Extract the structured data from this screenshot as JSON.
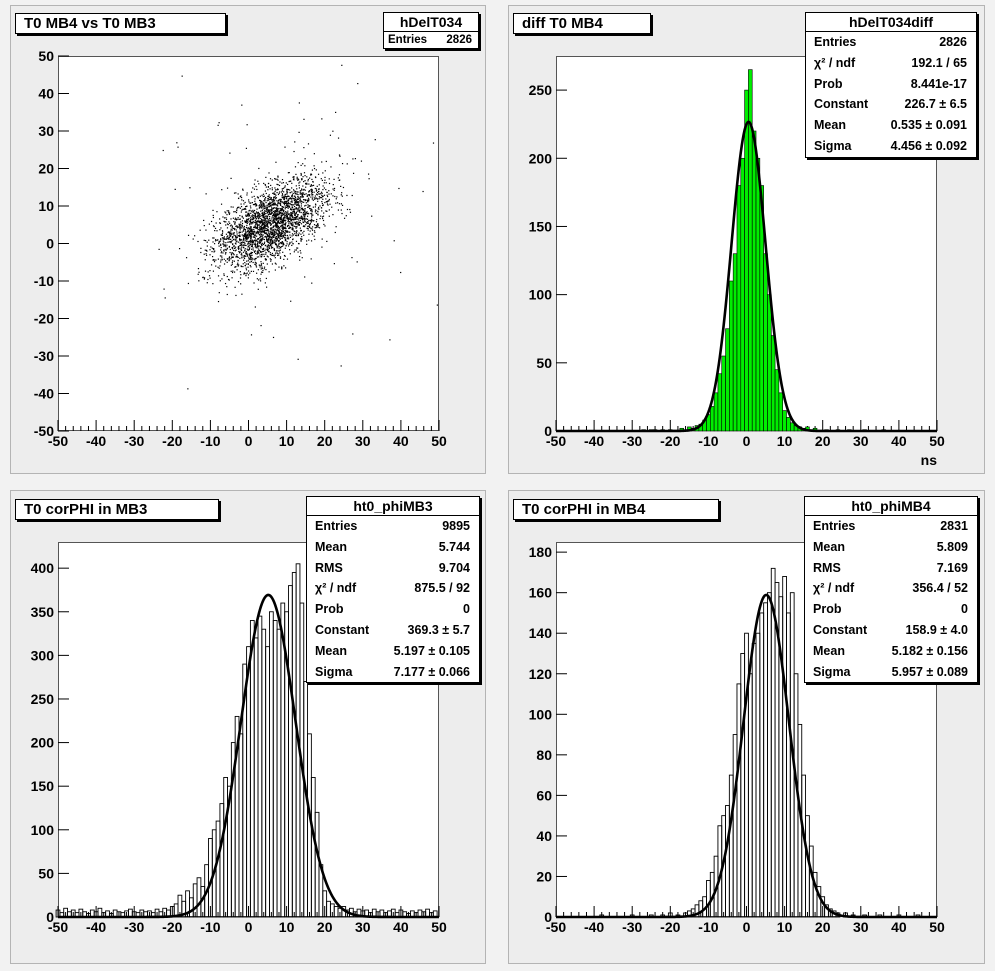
{
  "chart_data": [
    {
      "id": "p1",
      "type": "scatter",
      "title": "T0 MB4 vs T0 MB3",
      "stats": {
        "name": "hDelT034",
        "rows": [
          {
            "label": "Entries",
            "value": "2826"
          }
        ]
      },
      "xlim": [
        -50,
        50
      ],
      "ylim": [
        -50,
        50
      ],
      "xticks": [
        -50,
        -40,
        -30,
        -20,
        -10,
        0,
        10,
        20,
        30,
        40,
        50
      ],
      "yticks": [
        -50,
        -40,
        -30,
        -20,
        -10,
        0,
        10,
        20,
        30,
        40,
        50
      ],
      "xlabel": "",
      "ylabel": "",
      "grid": false,
      "correlation": 0.55,
      "x_mean": 5.7,
      "x_sigma": 7.2,
      "y_mean": 5.2,
      "y_sigma": 6.0,
      "entries": 2826
    },
    {
      "id": "p2",
      "type": "bar",
      "title": "diff T0 MB4",
      "stats": {
        "name": "hDelT034diff",
        "rows": [
          {
            "label": "Entries",
            "value": "2826"
          },
          {
            "label": "χ² / ndf",
            "value": "192.1 / 65"
          },
          {
            "label": "Prob",
            "value": "8.441e-17"
          },
          {
            "label": "Constant",
            "value": "226.7 ± 6.5"
          },
          {
            "label": "Mean",
            "value": "0.535 ± 0.091"
          },
          {
            "label": "Sigma",
            "value": "4.456 ± 0.092"
          }
        ]
      },
      "xlim": [
        -50,
        50
      ],
      "ylim": [
        0,
        275
      ],
      "xticks": [
        -50,
        -40,
        -30,
        -20,
        -10,
        0,
        10,
        20,
        30,
        40,
        50
      ],
      "yticks": [
        0,
        50,
        100,
        150,
        200,
        250
      ],
      "xlabel": "ns",
      "ylabel": "",
      "fill_color": "#00ee00",
      "fit": {
        "constant": 226.7,
        "mean": 0.535,
        "sigma": 4.456
      },
      "bin_width": 1,
      "bins": [
        {
          "x": -27,
          "y": 1
        },
        {
          "x": -25,
          "y": 1
        },
        {
          "x": -24,
          "y": 1
        },
        {
          "x": -22,
          "y": 1
        },
        {
          "x": -20,
          "y": 1
        },
        {
          "x": -17,
          "y": 2
        },
        {
          "x": -16,
          "y": 1
        },
        {
          "x": -15,
          "y": 3
        },
        {
          "x": -14,
          "y": 2
        },
        {
          "x": -13,
          "y": 4
        },
        {
          "x": -12,
          "y": 5
        },
        {
          "x": -11,
          "y": 8
        },
        {
          "x": -10,
          "y": 12
        },
        {
          "x": -9,
          "y": 18
        },
        {
          "x": -8,
          "y": 28
        },
        {
          "x": -7,
          "y": 42
        },
        {
          "x": -6,
          "y": 55
        },
        {
          "x": -5,
          "y": 75
        },
        {
          "x": -4,
          "y": 110
        },
        {
          "x": -3,
          "y": 130
        },
        {
          "x": -2,
          "y": 180
        },
        {
          "x": -1,
          "y": 200
        },
        {
          "x": 0,
          "y": 250
        },
        {
          "x": 1,
          "y": 265
        },
        {
          "x": 2,
          "y": 220
        },
        {
          "x": 3,
          "y": 200
        },
        {
          "x": 4,
          "y": 180
        },
        {
          "x": 5,
          "y": 130
        },
        {
          "x": 6,
          "y": 100
        },
        {
          "x": 7,
          "y": 70
        },
        {
          "x": 8,
          "y": 45
        },
        {
          "x": 9,
          "y": 28
        },
        {
          "x": 10,
          "y": 15
        },
        {
          "x": 11,
          "y": 10
        },
        {
          "x": 12,
          "y": 6
        },
        {
          "x": 13,
          "y": 4
        },
        {
          "x": 14,
          "y": 3
        },
        {
          "x": 15,
          "y": 2
        },
        {
          "x": 16,
          "y": 3
        },
        {
          "x": 17,
          "y": 1
        },
        {
          "x": 18,
          "y": 2
        },
        {
          "x": 21,
          "y": 1
        },
        {
          "x": 24,
          "y": 1
        },
        {
          "x": 27,
          "y": 1
        },
        {
          "x": 31,
          "y": 1
        },
        {
          "x": 36,
          "y": 1
        }
      ]
    },
    {
      "id": "p3",
      "type": "bar",
      "title": "T0 corPHI in MB3",
      "stats": {
        "name": "ht0_phiMB3",
        "rows": [
          {
            "label": "Entries",
            "value": "9895"
          },
          {
            "label": "Mean",
            "value": "5.744"
          },
          {
            "label": "RMS",
            "value": "9.704"
          },
          {
            "label": "χ² / ndf",
            "value": "875.5 / 92"
          },
          {
            "label": "Prob",
            "value": "0"
          },
          {
            "label": "Constant",
            "value": "369.3 ± 5.7"
          },
          {
            "label": "Mean",
            "value": "5.197 ± 0.105"
          },
          {
            "label": "Sigma",
            "value": "7.177 ± 0.066"
          }
        ]
      },
      "xlim": [
        -50,
        50
      ],
      "ylim": [
        0,
        430
      ],
      "xticks": [
        -50,
        -40,
        -30,
        -20,
        -10,
        0,
        10,
        20,
        30,
        40,
        50
      ],
      "yticks": [
        0,
        50,
        100,
        150,
        200,
        250,
        300,
        350,
        400
      ],
      "xlabel": "",
      "ylabel": "",
      "fill_color": "none",
      "fit": {
        "constant": 369.3,
        "mean": 5.197,
        "sigma": 7.177
      },
      "bin_width": 1,
      "bins": [
        {
          "x": -50,
          "y": 8
        },
        {
          "x": -49,
          "y": 5
        },
        {
          "x": -48,
          "y": 10
        },
        {
          "x": -47,
          "y": 6
        },
        {
          "x": -46,
          "y": 8
        },
        {
          "x": -45,
          "y": 5
        },
        {
          "x": -44,
          "y": 9
        },
        {
          "x": -43,
          "y": 6
        },
        {
          "x": -42,
          "y": 4
        },
        {
          "x": -41,
          "y": 8
        },
        {
          "x": -40,
          "y": 6
        },
        {
          "x": -39,
          "y": 10
        },
        {
          "x": -38,
          "y": 5
        },
        {
          "x": -37,
          "y": 7
        },
        {
          "x": -36,
          "y": 4
        },
        {
          "x": -35,
          "y": 8
        },
        {
          "x": -34,
          "y": 6
        },
        {
          "x": -33,
          "y": 5
        },
        {
          "x": -32,
          "y": 7
        },
        {
          "x": -31,
          "y": 9
        },
        {
          "x": -30,
          "y": 6
        },
        {
          "x": -29,
          "y": 5
        },
        {
          "x": -28,
          "y": 8
        },
        {
          "x": -27,
          "y": 6
        },
        {
          "x": -26,
          "y": 7
        },
        {
          "x": -25,
          "y": 5
        },
        {
          "x": -24,
          "y": 9
        },
        {
          "x": -23,
          "y": 6
        },
        {
          "x": -22,
          "y": 10
        },
        {
          "x": -21,
          "y": 8
        },
        {
          "x": -20,
          "y": 12
        },
        {
          "x": -19,
          "y": 15
        },
        {
          "x": -18,
          "y": 25
        },
        {
          "x": -17,
          "y": 18
        },
        {
          "x": -16,
          "y": 30
        },
        {
          "x": -15,
          "y": 22
        },
        {
          "x": -14,
          "y": 38
        },
        {
          "x": -13,
          "y": 45
        },
        {
          "x": -12,
          "y": 35
        },
        {
          "x": -11,
          "y": 60
        },
        {
          "x": -10,
          "y": 90
        },
        {
          "x": -9,
          "y": 100
        },
        {
          "x": -8,
          "y": 110
        },
        {
          "x": -7,
          "y": 130
        },
        {
          "x": -6,
          "y": 160
        },
        {
          "x": -5,
          "y": 150
        },
        {
          "x": -4,
          "y": 200
        },
        {
          "x": -3,
          "y": 230
        },
        {
          "x": -2,
          "y": 210
        },
        {
          "x": -1,
          "y": 290
        },
        {
          "x": 0,
          "y": 310
        },
        {
          "x": 1,
          "y": 340
        },
        {
          "x": 2,
          "y": 320
        },
        {
          "x": 3,
          "y": 345
        },
        {
          "x": 4,
          "y": 330
        },
        {
          "x": 5,
          "y": 310
        },
        {
          "x": 6,
          "y": 350
        },
        {
          "x": 7,
          "y": 340
        },
        {
          "x": 8,
          "y": 330
        },
        {
          "x": 9,
          "y": 360
        },
        {
          "x": 10,
          "y": 350
        },
        {
          "x": 11,
          "y": 380
        },
        {
          "x": 12,
          "y": 395
        },
        {
          "x": 13,
          "y": 405
        },
        {
          "x": 14,
          "y": 360
        },
        {
          "x": 15,
          "y": 270
        },
        {
          "x": 16,
          "y": 210
        },
        {
          "x": 17,
          "y": 160
        },
        {
          "x": 18,
          "y": 120
        },
        {
          "x": 19,
          "y": 60
        },
        {
          "x": 20,
          "y": 30
        },
        {
          "x": 21,
          "y": 18
        },
        {
          "x": 22,
          "y": 15
        },
        {
          "x": 23,
          "y": 12
        },
        {
          "x": 24,
          "y": 10
        },
        {
          "x": 25,
          "y": 12
        },
        {
          "x": 26,
          "y": 8
        },
        {
          "x": 27,
          "y": 10
        },
        {
          "x": 28,
          "y": 6
        },
        {
          "x": 29,
          "y": 9
        },
        {
          "x": 30,
          "y": 7
        },
        {
          "x": 31,
          "y": 8
        },
        {
          "x": 32,
          "y": 5
        },
        {
          "x": 33,
          "y": 9
        },
        {
          "x": 34,
          "y": 6
        },
        {
          "x": 35,
          "y": 8
        },
        {
          "x": 36,
          "y": 5
        },
        {
          "x": 37,
          "y": 7
        },
        {
          "x": 38,
          "y": 9
        },
        {
          "x": 39,
          "y": 5
        },
        {
          "x": 40,
          "y": 8
        },
        {
          "x": 41,
          "y": 6
        },
        {
          "x": 42,
          "y": 4
        },
        {
          "x": 43,
          "y": 7
        },
        {
          "x": 44,
          "y": 5
        },
        {
          "x": 45,
          "y": 8
        },
        {
          "x": 46,
          "y": 6
        },
        {
          "x": 47,
          "y": 9
        },
        {
          "x": 48,
          "y": 5
        },
        {
          "x": 49,
          "y": 7
        }
      ]
    },
    {
      "id": "p4",
      "type": "bar",
      "title": "T0 corPHI in MB4",
      "stats": {
        "name": "ht0_phiMB4",
        "rows": [
          {
            "label": "Entries",
            "value": "2831"
          },
          {
            "label": "Mean",
            "value": "5.809"
          },
          {
            "label": "RMS",
            "value": "7.169"
          },
          {
            "label": "χ² / ndf",
            "value": "356.4 / 52"
          },
          {
            "label": "Prob",
            "value": "0"
          },
          {
            "label": "Constant",
            "value": "158.9 ± 4.0"
          },
          {
            "label": "Mean",
            "value": "5.182 ± 0.156"
          },
          {
            "label": "Sigma",
            "value": "5.957 ± 0.089"
          }
        ]
      },
      "xlim": [
        -50,
        50
      ],
      "ylim": [
        0,
        185
      ],
      "xticks": [
        -50,
        -40,
        -30,
        -20,
        -10,
        0,
        10,
        20,
        30,
        40,
        50
      ],
      "yticks": [
        0,
        20,
        40,
        60,
        80,
        100,
        120,
        140,
        160,
        180
      ],
      "xlabel": "",
      "ylabel": "",
      "fill_color": "none",
      "fit": {
        "constant": 158.9,
        "mean": 5.182,
        "sigma": 5.957
      },
      "bin_width": 1,
      "bins": [
        {
          "x": -38,
          "y": 1
        },
        {
          "x": -30,
          "y": 1
        },
        {
          "x": -25,
          "y": 1
        },
        {
          "x": -22,
          "y": 1
        },
        {
          "x": -20,
          "y": 2
        },
        {
          "x": -18,
          "y": 1
        },
        {
          "x": -16,
          "y": 2
        },
        {
          "x": -15,
          "y": 3
        },
        {
          "x": -14,
          "y": 4
        },
        {
          "x": -13,
          "y": 6
        },
        {
          "x": -12,
          "y": 8
        },
        {
          "x": -11,
          "y": 10
        },
        {
          "x": -10,
          "y": 18
        },
        {
          "x": -9,
          "y": 22
        },
        {
          "x": -8,
          "y": 30
        },
        {
          "x": -7,
          "y": 45
        },
        {
          "x": -6,
          "y": 50
        },
        {
          "x": -5,
          "y": 55
        },
        {
          "x": -4,
          "y": 70
        },
        {
          "x": -3,
          "y": 90
        },
        {
          "x": -2,
          "y": 115
        },
        {
          "x": -1,
          "y": 130
        },
        {
          "x": 0,
          "y": 140
        },
        {
          "x": 1,
          "y": 120
        },
        {
          "x": 2,
          "y": 135
        },
        {
          "x": 3,
          "y": 140
        },
        {
          "x": 4,
          "y": 150
        },
        {
          "x": 5,
          "y": 155
        },
        {
          "x": 6,
          "y": 160
        },
        {
          "x": 7,
          "y": 172
        },
        {
          "x": 8,
          "y": 165
        },
        {
          "x": 9,
          "y": 158
        },
        {
          "x": 10,
          "y": 168
        },
        {
          "x": 11,
          "y": 150
        },
        {
          "x": 12,
          "y": 160
        },
        {
          "x": 13,
          "y": 120
        },
        {
          "x": 14,
          "y": 95
        },
        {
          "x": 15,
          "y": 70
        },
        {
          "x": 16,
          "y": 50
        },
        {
          "x": 17,
          "y": 35
        },
        {
          "x": 18,
          "y": 22
        },
        {
          "x": 19,
          "y": 15
        },
        {
          "x": 20,
          "y": 10
        },
        {
          "x": 21,
          "y": 6
        },
        {
          "x": 22,
          "y": 4
        },
        {
          "x": 23,
          "y": 3
        },
        {
          "x": 24,
          "y": 2
        },
        {
          "x": 26,
          "y": 2
        },
        {
          "x": 28,
          "y": 1
        },
        {
          "x": 31,
          "y": 1
        },
        {
          "x": 35,
          "y": 1
        },
        {
          "x": 40,
          "y": 1
        },
        {
          "x": 45,
          "y": 1
        }
      ]
    }
  ]
}
